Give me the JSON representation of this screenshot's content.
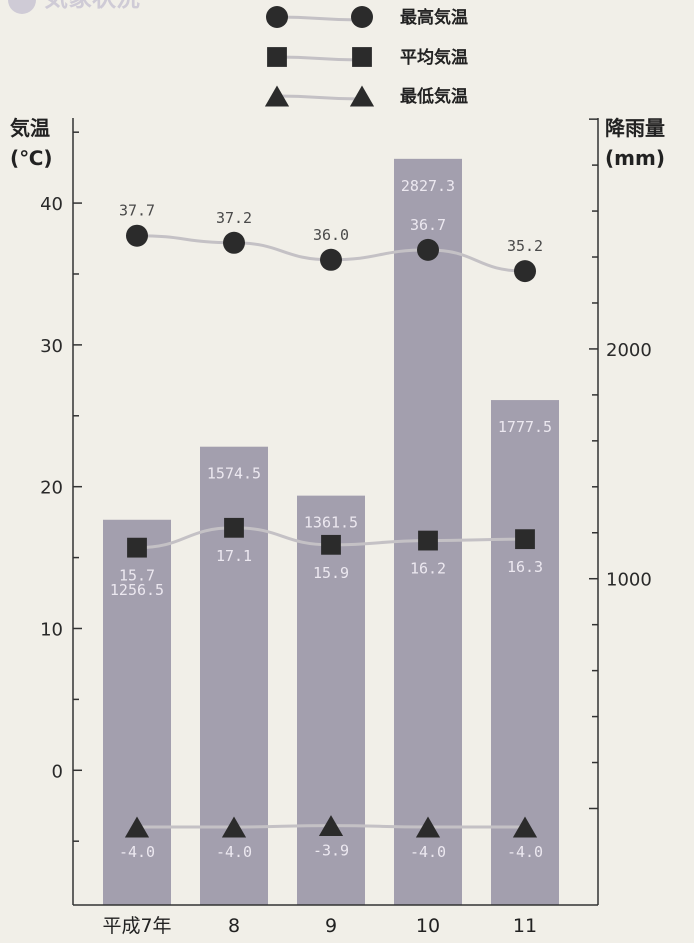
{
  "page_title": "気象状況",
  "colors": {
    "bar": "#a39fae",
    "marker": "#2b2b2b",
    "line": "#c4c1c5",
    "axis": "#333333",
    "background": "#f1efe8"
  },
  "chart_data": {
    "type": "bar",
    "categories": [
      "平成7年",
      "8",
      "9",
      "10",
      "11"
    ],
    "series": [
      {
        "name": "最高気温",
        "kind": "line",
        "marker": "circle",
        "axis": "left",
        "values": [
          37.7,
          37.2,
          36.0,
          36.7,
          35.2
        ]
      },
      {
        "name": "平均気温",
        "kind": "line",
        "marker": "square",
        "axis": "left",
        "values": [
          15.7,
          17.1,
          15.9,
          16.2,
          16.3
        ]
      },
      {
        "name": "最低気温",
        "kind": "line",
        "marker": "triangle",
        "axis": "left",
        "values": [
          -4.0,
          -4.0,
          -3.9,
          -4.0,
          -4.0
        ]
      },
      {
        "name": "降雨量",
        "kind": "bar",
        "axis": "right",
        "values": [
          1256.5,
          1574.5,
          1361.5,
          2827.3,
          1777.5
        ]
      }
    ],
    "left_axis": {
      "title_line1": "気温",
      "title_line2": "(℃)",
      "ylim": [
        -9.5,
        46
      ],
      "ticks": [
        0,
        10,
        20,
        30,
        40
      ]
    },
    "right_axis": {
      "title_line1": "降雨量",
      "title_line2": "(mm)",
      "ylim": [
        -420,
        3005
      ],
      "ticks": [
        1000,
        2000
      ]
    },
    "legend_placement": "top-center",
    "grid": false
  }
}
